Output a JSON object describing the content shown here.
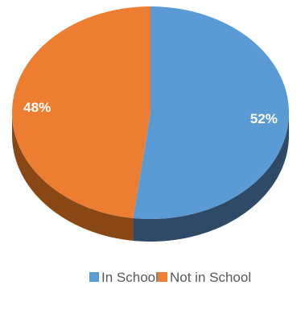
{
  "chart_data": {
    "type": "pie",
    "title": "",
    "slices": [
      {
        "name": "In School",
        "value": 52,
        "label": "52%",
        "color": "#5B9BD5",
        "side_color": "#2E4A66"
      },
      {
        "name": "Not in School",
        "value": 48,
        "label": "48%",
        "color": "#ED7D31",
        "side_color": "#8A4716"
      }
    ],
    "legend": {
      "placement": "bottom",
      "entries": [
        {
          "label": "In School",
          "color": "#5B9BD5"
        },
        {
          "label": "Not in School",
          "color": "#ED7D31"
        }
      ]
    },
    "style": "3d"
  }
}
